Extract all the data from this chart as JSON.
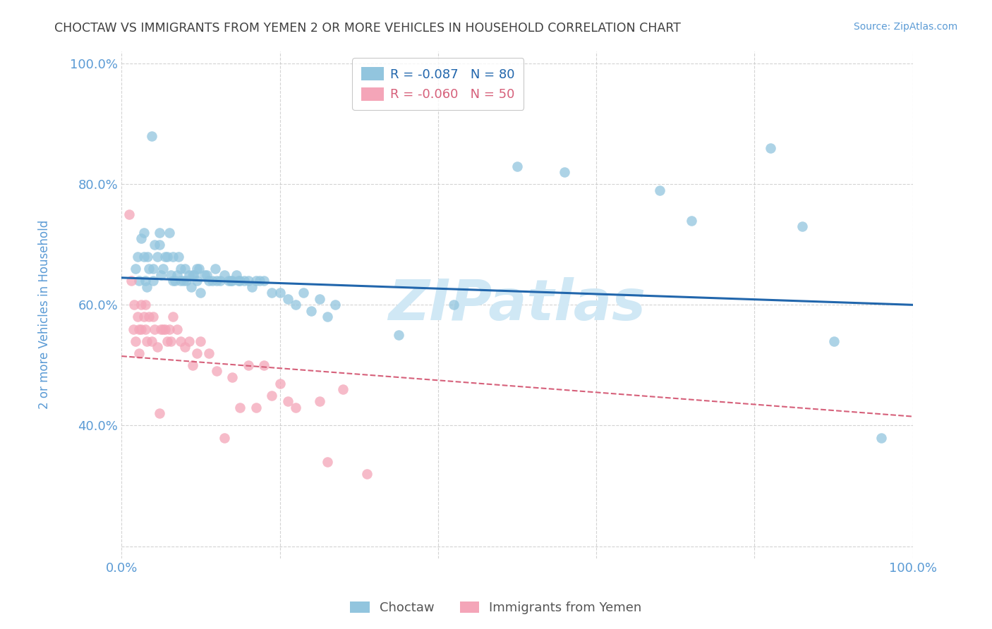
{
  "title": "CHOCTAW VS IMMIGRANTS FROM YEMEN 2 OR MORE VEHICLES IN HOUSEHOLD CORRELATION CHART",
  "source": "Source: ZipAtlas.com",
  "ylabel": "2 or more Vehicles in Household",
  "legend_blue_r": "-0.087",
  "legend_blue_n": "80",
  "legend_pink_r": "-0.060",
  "legend_pink_n": "50",
  "blue_color": "#92c5de",
  "pink_color": "#f4a5b8",
  "blue_line_color": "#2166ac",
  "pink_line_color": "#d6607a",
  "title_color": "#404040",
  "source_color": "#5b9bd5",
  "axis_label_color": "#5b9bd5",
  "tick_label_color": "#5b9bd5",
  "watermark": "ZIPatlas",
  "watermark_color": "#d0e8f5",
  "blue_scatter_x": [
    0.018,
    0.02,
    0.022,
    0.025,
    0.028,
    0.028,
    0.03,
    0.032,
    0.033,
    0.035,
    0.038,
    0.04,
    0.04,
    0.042,
    0.045,
    0.048,
    0.048,
    0.05,
    0.052,
    0.055,
    0.058,
    0.06,
    0.062,
    0.065,
    0.065,
    0.068,
    0.07,
    0.072,
    0.075,
    0.075,
    0.078,
    0.08,
    0.082,
    0.085,
    0.088,
    0.09,
    0.092,
    0.095,
    0.095,
    0.098,
    0.1,
    0.105,
    0.108,
    0.11,
    0.115,
    0.118,
    0.12,
    0.125,
    0.13,
    0.135,
    0.138,
    0.14,
    0.145,
    0.148,
    0.15,
    0.155,
    0.16,
    0.165,
    0.17,
    0.175,
    0.18,
    0.19,
    0.2,
    0.21,
    0.22,
    0.23,
    0.24,
    0.25,
    0.26,
    0.27,
    0.35,
    0.42,
    0.5,
    0.56,
    0.68,
    0.72,
    0.82,
    0.86,
    0.9,
    0.96
  ],
  "blue_scatter_y": [
    0.66,
    0.68,
    0.64,
    0.71,
    0.68,
    0.72,
    0.64,
    0.63,
    0.68,
    0.66,
    0.88,
    0.66,
    0.64,
    0.7,
    0.68,
    0.72,
    0.7,
    0.65,
    0.66,
    0.68,
    0.68,
    0.72,
    0.65,
    0.64,
    0.68,
    0.64,
    0.65,
    0.68,
    0.64,
    0.66,
    0.64,
    0.66,
    0.64,
    0.65,
    0.63,
    0.65,
    0.65,
    0.66,
    0.64,
    0.66,
    0.62,
    0.65,
    0.65,
    0.64,
    0.64,
    0.66,
    0.64,
    0.64,
    0.65,
    0.64,
    0.64,
    0.64,
    0.65,
    0.64,
    0.64,
    0.64,
    0.64,
    0.63,
    0.64,
    0.64,
    0.64,
    0.62,
    0.62,
    0.61,
    0.6,
    0.62,
    0.59,
    0.61,
    0.58,
    0.6,
    0.55,
    0.6,
    0.83,
    0.82,
    0.79,
    0.74,
    0.86,
    0.73,
    0.54,
    0.38
  ],
  "pink_scatter_x": [
    0.01,
    0.012,
    0.015,
    0.016,
    0.018,
    0.02,
    0.022,
    0.022,
    0.025,
    0.025,
    0.028,
    0.03,
    0.03,
    0.032,
    0.035,
    0.038,
    0.04,
    0.042,
    0.045,
    0.048,
    0.05,
    0.052,
    0.055,
    0.058,
    0.06,
    0.062,
    0.065,
    0.07,
    0.075,
    0.08,
    0.085,
    0.09,
    0.095,
    0.1,
    0.11,
    0.12,
    0.13,
    0.14,
    0.15,
    0.16,
    0.17,
    0.18,
    0.19,
    0.2,
    0.21,
    0.22,
    0.25,
    0.26,
    0.28,
    0.31
  ],
  "pink_scatter_y": [
    0.75,
    0.64,
    0.56,
    0.6,
    0.54,
    0.58,
    0.56,
    0.52,
    0.6,
    0.56,
    0.58,
    0.6,
    0.56,
    0.54,
    0.58,
    0.54,
    0.58,
    0.56,
    0.53,
    0.42,
    0.56,
    0.56,
    0.56,
    0.54,
    0.56,
    0.54,
    0.58,
    0.56,
    0.54,
    0.53,
    0.54,
    0.5,
    0.52,
    0.54,
    0.52,
    0.49,
    0.38,
    0.48,
    0.43,
    0.5,
    0.43,
    0.5,
    0.45,
    0.47,
    0.44,
    0.43,
    0.44,
    0.34,
    0.46,
    0.32
  ],
  "blue_line_start_y": 0.645,
  "blue_line_end_y": 0.6,
  "pink_line_start_y": 0.515,
  "pink_line_end_y": 0.415,
  "xlim": [
    0.0,
    1.0
  ],
  "ylim": [
    0.18,
    1.02
  ],
  "yticks": [
    0.2,
    0.4,
    0.6,
    0.8,
    1.0
  ],
  "ytick_labels": [
    "",
    "40.0%",
    "60.0%",
    "80.0%",
    "100.0%"
  ]
}
